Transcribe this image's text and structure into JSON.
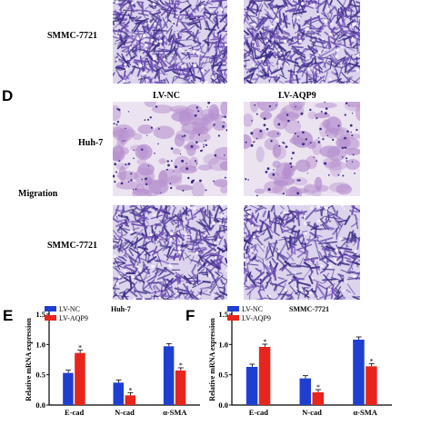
{
  "panel_letters": {
    "d": "D",
    "e": "E",
    "f": "F"
  },
  "row_labels": {
    "top": "SMMC-7721",
    "huh7": "Huh-7",
    "migration": "Migration",
    "smmc": "SMMC-7721"
  },
  "column_headers": {
    "nc": "LV-NC",
    "aqp9": "LV-AQP9"
  },
  "colors": {
    "lv_nc": "#1f3fd1",
    "lv_aqp9": "#e8251c",
    "stain_dark": "#3c2e86",
    "stain_light": "#b58fce",
    "background_field": "#f1ecf4"
  },
  "chart_data": [
    {
      "type": "bar",
      "panel": "E",
      "title": "Huh-7",
      "ylabel": "Relative mRNA expression",
      "categories": [
        "E-cad",
        "N-cad",
        "α-SMA"
      ],
      "ylim": [
        0,
        1.5
      ],
      "yticks": [
        "0.0",
        "0.5",
        "1.0",
        "1.5"
      ],
      "legend": [
        "LV-NC",
        "LV-AQP9"
      ],
      "series": [
        {
          "name": "LV-NC",
          "values": [
            0.53,
            0.37,
            0.97
          ]
        },
        {
          "name": "LV-AQP9",
          "values": [
            0.86,
            0.16,
            0.57
          ]
        }
      ],
      "annotations": [
        "*",
        "*",
        "*"
      ]
    },
    {
      "type": "bar",
      "panel": "F",
      "title": "SMMC-7721",
      "ylabel": "Relative mRNA expression",
      "categories": [
        "E-cad",
        "N-cad",
        "α-SMA"
      ],
      "ylim": [
        0,
        1.5
      ],
      "yticks": [
        "0.0",
        "0.5",
        "1.0",
        "1.5"
      ],
      "legend": [
        "LV-NC",
        "LV-AQP9"
      ],
      "series": [
        {
          "name": "LV-NC",
          "values": [
            0.63,
            0.44,
            1.08
          ]
        },
        {
          "name": "LV-AQP9",
          "values": [
            0.96,
            0.21,
            0.64
          ]
        }
      ],
      "annotations": [
        "*",
        "*",
        "*"
      ]
    }
  ]
}
